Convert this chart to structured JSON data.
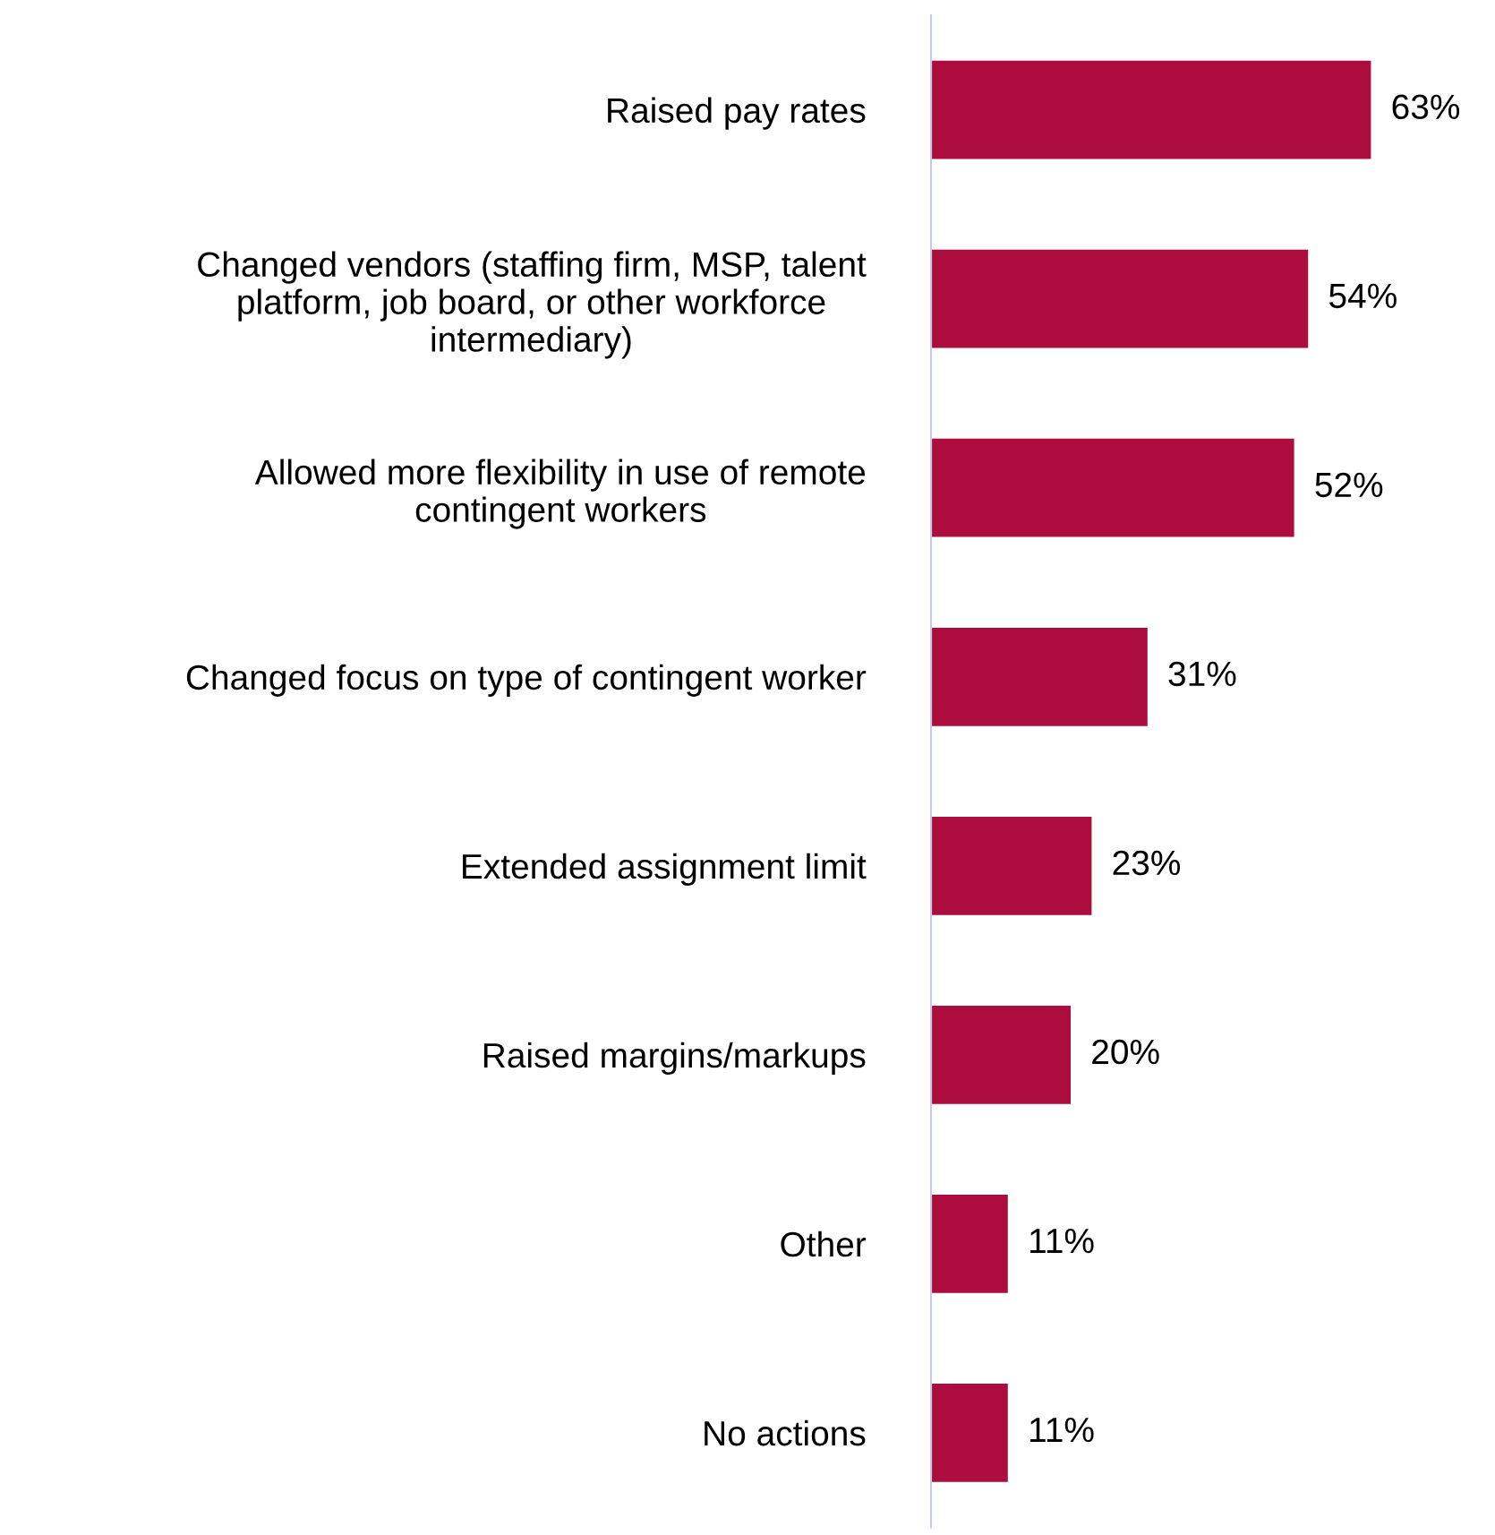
{
  "chart_data": {
    "type": "bar",
    "orientation": "horizontal",
    "relative": false,
    "categories": [
      "Raised pay rates",
      "Changed vendors (staffing firm, MSP, talent\nplatform, job board, or other workforce\nintermediary)",
      "Allowed more flexibility in use of remote\ncontingent workers",
      "Changed focus on type of contingent worker",
      "Extended assignment limit",
      "Raised margins/markups",
      "Other",
      "No actions"
    ],
    "values": [
      63,
      54,
      52,
      31,
      23,
      20,
      11,
      11
    ],
    "value_labels": [
      "63%",
      "54%",
      "52%",
      "31%",
      "23%",
      "20%",
      "11%",
      "11%"
    ],
    "color": "#ad0c3f",
    "grid": false,
    "legend": false
  }
}
